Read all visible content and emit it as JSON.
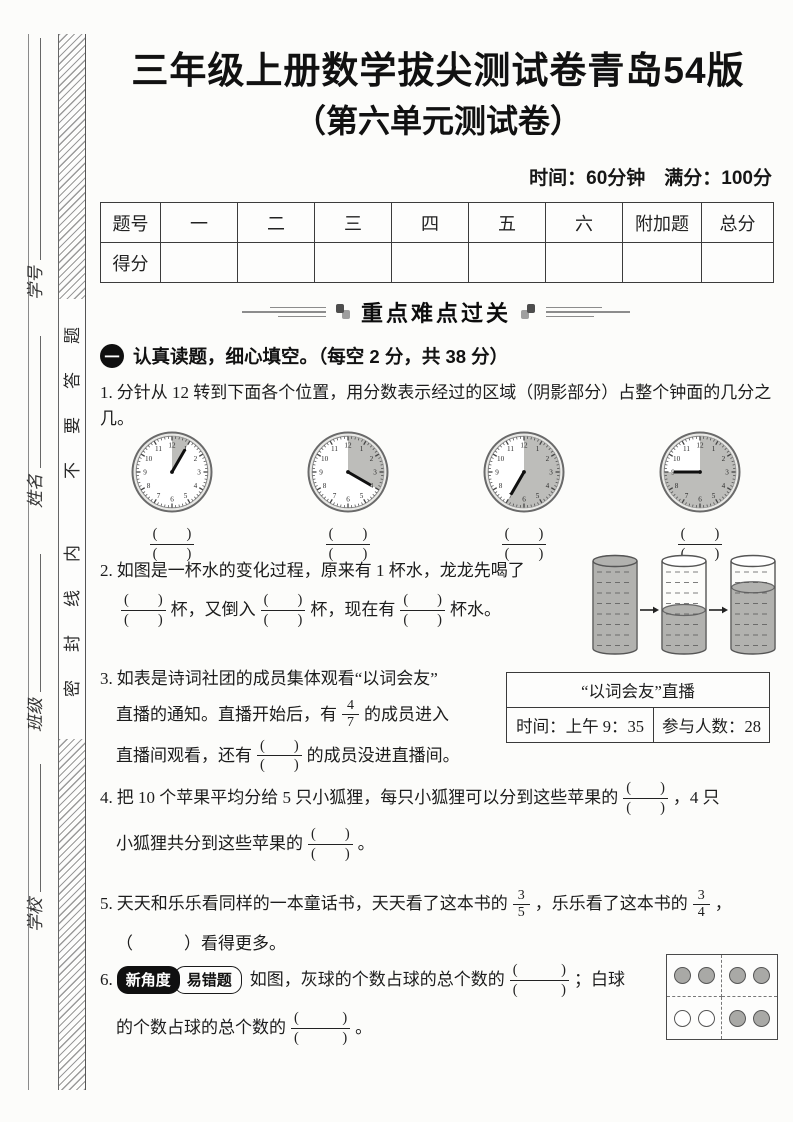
{
  "page": {
    "title": "三年级上册数学拔尖测试卷青岛54版",
    "subtitle": "（第六单元测试卷）",
    "meta": "时间：60分钟　满分：100分"
  },
  "sidebar": {
    "fields": [
      "学号",
      "姓名",
      "班级",
      "学校"
    ],
    "seal_chars": [
      "题",
      "答",
      "要",
      "不",
      "内",
      "线",
      "封",
      "密"
    ],
    "seal_text": "密封线内不要答题"
  },
  "score_table": {
    "headers": [
      "题号",
      "一",
      "二",
      "三",
      "四",
      "五",
      "六",
      "附加题",
      "总分"
    ],
    "score_label": "得分"
  },
  "banner": {
    "title": "重点难点过关"
  },
  "section_one": {
    "number_badge": "一",
    "title": "认真读题，细心填空。（每空 2 分，共 38 分）"
  },
  "q1": {
    "number": "1.",
    "text": "分针从 12 转到下面各个位置，用分数表示经过的区域（阴影部分）占整个钟面的几分之几。",
    "clocks": [
      {
        "minute_at": 1
      },
      {
        "minute_at": 4
      },
      {
        "minute_at": 7
      },
      {
        "minute_at": 9
      }
    ]
  },
  "q2": {
    "number": "2.",
    "line1": "如图是一杯水的变化过程，原来有 1 杯水，龙龙先喝了",
    "after_frac1": "杯，又倒入",
    "after_frac2": "杯，现在有",
    "after_frac3": "杯水。",
    "cups": [
      {
        "fill": 1
      },
      {
        "fill": 0.44
      },
      {
        "fill": 0.7
      }
    ]
  },
  "q3": {
    "number": "3.",
    "line1": "如表是诗词社团的成员集体观看“以词会友”",
    "line2_before": "直播的通知。直播开始后，有",
    "frac_num": "4",
    "frac_den": "7",
    "line2_after": "的成员进入",
    "line3_before": "直播间观看，还有",
    "line3_after": "的成员没进直播间。",
    "table": {
      "title": "“以词会友”直播",
      "cell_time": "时间：上午 9：35",
      "cell_count": "参与人数：28"
    }
  },
  "q4": {
    "number": "4.",
    "line1_before": "把 10 个苹果平均分给 5 只小狐狸，每只小狐狸可以分到这些苹果的",
    "line1_after": "，4 只",
    "line2_before": "小狐狸共分到这些苹果的",
    "line2_after": "。"
  },
  "q5": {
    "number": "5.",
    "before_frac1": "天天和乐乐看同样的一本童话书，天天看了这本书的",
    "frac1_num": "3",
    "frac1_den": "5",
    "between": "，乐乐看了这本书的",
    "frac2_num": "3",
    "frac2_den": "4",
    "after": "，",
    "line2": "（　　　）看得更多。"
  },
  "q6": {
    "number": "6.",
    "badge1": "新角度",
    "badge2": "易错题",
    "line1_before": "如图，灰球的个数占球的总个数的",
    "line1_after": "；白球",
    "line2_before": "的个数占球的总个数的",
    "line2_after": "。",
    "balls": [
      {
        "quadrant": "tl",
        "colors": [
          "gray",
          "gray"
        ]
      },
      {
        "quadrant": "tr",
        "colors": [
          "gray",
          "gray"
        ]
      },
      {
        "quadrant": "bl",
        "colors": [
          "white",
          "white"
        ]
      },
      {
        "quadrant": "br",
        "colors": [
          "gray",
          "gray"
        ]
      }
    ]
  },
  "tokens": {
    "blank": "(　　)",
    "blank_wide": "(　　　)"
  },
  "colors": {
    "shade": "#bdbdba",
    "water": "#b2b2af",
    "ball_gray": "#a9a9a6",
    "ink": "#1c1c1c"
  }
}
